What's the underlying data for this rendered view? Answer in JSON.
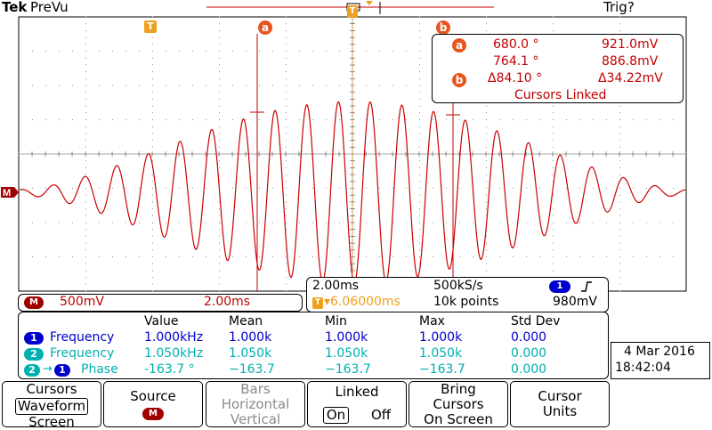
{
  "header": {
    "brand": "Tek",
    "mode": "PreVu",
    "trigger_status": "Trig?"
  },
  "markers": {
    "trigger_marker": "T",
    "cursor_a": "a",
    "cursor_b": "b",
    "ref_marker": "M"
  },
  "cursor_readout": {
    "a_label": "a",
    "a_angle": "680.0 °",
    "a_voltage": "921.0mV",
    "b_label": "b",
    "b_angle": "764.1 °",
    "b_voltage": "886.8mV",
    "delta_angle": "Δ84.10 °",
    "delta_voltage": "Δ34.22mV",
    "status": "Cursors Linked"
  },
  "channel_bar": {
    "badge": "M",
    "volts_div": "500mV",
    "time_div": "2.00ms"
  },
  "timebase": {
    "time_div": "2.00ms",
    "sample_rate": "500kS/s",
    "channel_badge": "1",
    "slope_icon": "rising-edge",
    "trigger_position": "▾6.06000ms",
    "record_length": "10k points",
    "trigger_level": "980mV"
  },
  "measurements": {
    "headers": [
      "Value",
      "Mean",
      "Min",
      "Max",
      "Std Dev"
    ],
    "rows": [
      {
        "badge": "1",
        "name": "Frequency",
        "value": "1.000kHz",
        "mean": "1.000k",
        "min": "1.000k",
        "max": "1.000k",
        "std": "0.000"
      },
      {
        "badge": "2",
        "name": "Frequency",
        "value": "1.050kHz",
        "mean": "1.050k",
        "min": "1.050k",
        "max": "1.050k",
        "std": "0.000"
      },
      {
        "badge": "2",
        "badge2": "1",
        "name": "Phase",
        "value": "-163.7 °",
        "mean": "−163.7",
        "min": "−163.7",
        "max": "−163.7",
        "std": "0.000"
      }
    ]
  },
  "datetime": {
    "date": "4 Mar  2016",
    "time": "18:42:04"
  },
  "menu": {
    "cursors": {
      "line1": "Cursors",
      "line2": "Waveform",
      "line3": "Screen"
    },
    "source": {
      "line1": "Source",
      "badge": "M"
    },
    "bars": {
      "line1": "Bars",
      "line2": "Horizontal",
      "line3": "Vertical"
    },
    "linked": {
      "line1": "Linked",
      "on": "On",
      "off": "Off"
    },
    "bring": {
      "line1": "Bring",
      "line2": "Cursors",
      "line3": "On Screen"
    },
    "units": {
      "line1": "Cursor",
      "line2": "Units"
    }
  },
  "colors": {
    "waveform": "#cc0000",
    "cursor_badge": "#e8541e",
    "trigger_orange": "#f0a020",
    "ch1_blue": "#0000cc",
    "ch2_cyan": "#00b0b0",
    "math_badge": "#a00000"
  },
  "waveform": {
    "cycles_over_screen": 21,
    "modulation": "beat envelope, peak near center"
  }
}
